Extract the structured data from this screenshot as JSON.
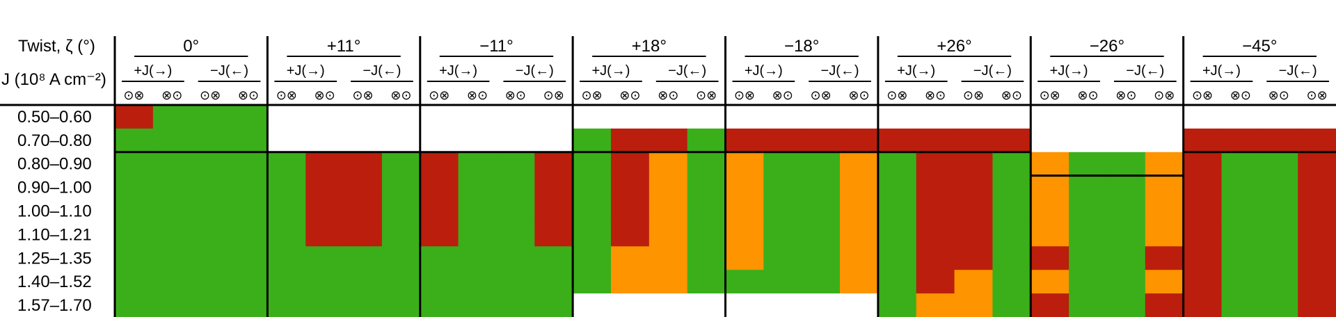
{
  "chart_data": {
    "type": "heatmap",
    "row_header_1": "Twist, ζ (°)",
    "row_header_2": "J (10⁸ A cm⁻²)",
    "rows": [
      "0.50–0.60",
      "0.70–0.80",
      "0.80–0.90",
      "0.90–1.00",
      "1.00–1.10",
      "1.10–1.21",
      "1.25–1.35",
      "1.40–1.52",
      "1.57–1.70"
    ],
    "sub_labels": [
      "+J(→)",
      "−J(←)"
    ],
    "spin_sets": {
      "a": [
        "⊙⊗",
        "⊗⊙",
        "⊙⊗",
        "⊗⊙"
      ],
      "b": [
        "⊙⊗",
        "⊗⊙",
        "⊗⊙",
        "⊙⊗"
      ]
    },
    "legend_colors": {
      "G": "#3aaf1a",
      "R": "#bb1e0c",
      "O": "#fd9400",
      "W": "#ffffff"
    },
    "groups": [
      {
        "label": "0°",
        "spins": "a",
        "rows": [
          "RGGG",
          "GGGG",
          "GGGG",
          "GGGG",
          "GGGG",
          "GGGG",
          "GGGG",
          "GGGG",
          "GGGG"
        ]
      },
      {
        "label": "+11°",
        "spins": "a",
        "rows": [
          "WWWW",
          "WWWW",
          "GRRG",
          "GRRG",
          "GRRG",
          "GRRG",
          "GGGG",
          "GGGG",
          "GGGG"
        ]
      },
      {
        "label": "−11°",
        "spins": "b",
        "rows": [
          "WWWW",
          "WWWW",
          "RGGR",
          "RGGR",
          "RGGR",
          "RGGR",
          "GGGG",
          "GGGG",
          "GGGG"
        ]
      },
      {
        "label": "+18°",
        "spins": "b",
        "rows": [
          "WWWW",
          "GRRG",
          "GROG",
          "GROG",
          "GROG",
          "GROG",
          "GOOG",
          "GOOG",
          "WWWW"
        ]
      },
      {
        "label": "−18°",
        "spins": "a",
        "rows": [
          "WWWW",
          "RRRR",
          "OGGO",
          "OGGO",
          "OGGO",
          "OGGO",
          "OGGO",
          "GGGO",
          "WWWW"
        ]
      },
      {
        "label": "+26°",
        "spins": "a",
        "rows": [
          "WWWW",
          "RRRR",
          "GRRG",
          "GRRG",
          "GRRG",
          "GRRG",
          "GRRG",
          "GROG",
          "GOOG"
        ]
      },
      {
        "label": "−26°",
        "spins": "b",
        "rows": [
          "WWWW",
          "WWWW",
          "OGGO",
          "OGGO",
          "OGGO",
          "OGGO",
          "RGGR",
          "OGGO",
          "RGGR"
        ]
      },
      {
        "label": "−45°",
        "spins": "b",
        "rows": [
          "WWWW",
          "RRRR",
          "RGGR",
          "RGGR",
          "RGGR",
          "RGGR",
          "RGGR",
          "RGGR",
          "RGGR"
        ]
      }
    ]
  }
}
